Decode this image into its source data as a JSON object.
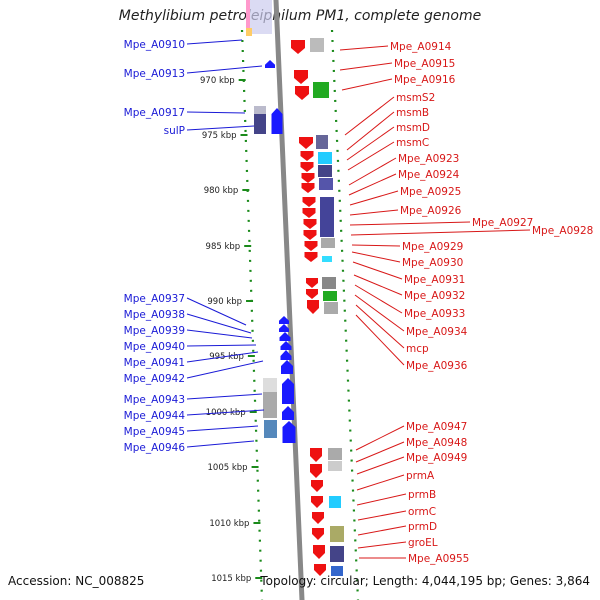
{
  "title": "Methylibium petroleiphilum PM1, complete genome",
  "footer": {
    "accession": "Accession: NC_008825",
    "summary": "Topology: circular; Length: 4,044,195 bp; Genes: 3,864"
  },
  "colors": {
    "left_label": "#1a1ad6",
    "right_label": "#d81818",
    "minus_gene": "#1a1aff",
    "plus_gene": "#ee1111",
    "tick": "#1a8a1a",
    "backbone": "#888888"
  },
  "scale_labels": [
    "970 kbp",
    "975 kbp",
    "980 kbp",
    "985 kbp",
    "990 kbp",
    "995 kbp",
    "1000 kbp",
    "1005 kbp",
    "1010 kbp",
    "1015 kbp"
  ],
  "left_genes": [
    "Mpe_A0910",
    "Mpe_A0913",
    "Mpe_A0917",
    "sulP",
    "Mpe_A0937",
    "Mpe_A0938",
    "Mpe_A0939",
    "Mpe_A0940",
    "Mpe_A0941",
    "Mpe_A0942",
    "Mpe_A0943",
    "Mpe_A0944",
    "Mpe_A0945",
    "Mpe_A0946"
  ],
  "right_genes": [
    "Mpe_A0914",
    "Mpe_A0915",
    "Mpe_A0916",
    "msmS2",
    "msmB",
    "msmD",
    "msmC",
    "Mpe_A0923",
    "Mpe_A0924",
    "Mpe_A0925",
    "Mpe_A0926",
    "Mpe_A0927",
    "Mpe_A0928",
    "Mpe_A0929",
    "Mpe_A0930",
    "Mpe_A0931",
    "Mpe_A0932",
    "Mpe_A0933",
    "Mpe_A0934",
    "mcp",
    "Mpe_A0936",
    "Mpe_A0947",
    "Mpe_A0948",
    "Mpe_A0949",
    "prmA",
    "prmB",
    "ormC",
    "prmD",
    "groEL",
    "Mpe_A0955"
  ]
}
